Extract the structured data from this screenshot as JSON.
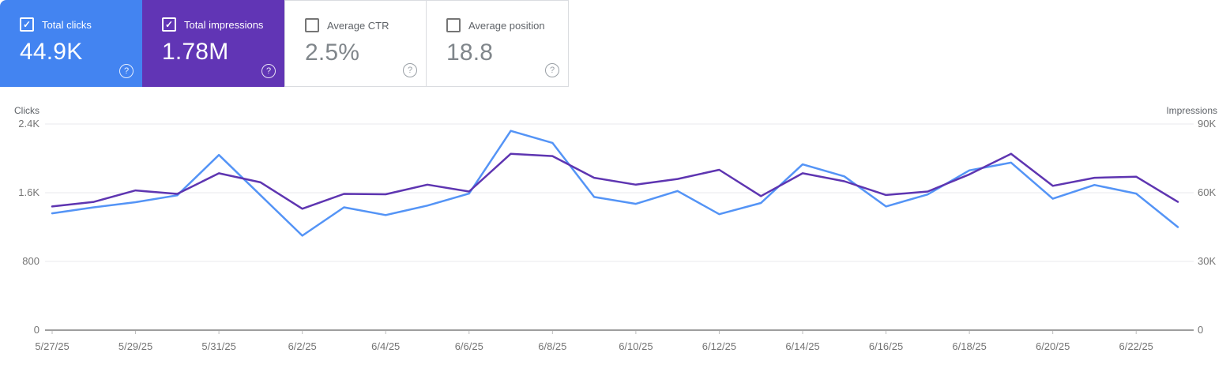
{
  "cards": [
    {
      "label": "Total clicks",
      "value": "44.9K",
      "checked": true,
      "bg": "#4384f1"
    },
    {
      "label": "Total impressions",
      "value": "1.78M",
      "checked": true,
      "bg": "#6135b5"
    },
    {
      "label": "Average CTR",
      "value": "2.5%",
      "checked": false,
      "bg": null
    },
    {
      "label": "Average position",
      "value": "18.8",
      "checked": false,
      "bg": null
    }
  ],
  "icons": {
    "check": "✓",
    "help": "?"
  },
  "chart_data": {
    "type": "line",
    "x": [
      "5/27/25",
      "5/28/25",
      "5/29/25",
      "5/30/25",
      "5/31/25",
      "6/1/25",
      "6/2/25",
      "6/3/25",
      "6/4/25",
      "6/5/25",
      "6/6/25",
      "6/7/25",
      "6/8/25",
      "6/9/25",
      "6/10/25",
      "6/11/25",
      "6/12/25",
      "6/13/25",
      "6/14/25",
      "6/15/25",
      "6/16/25",
      "6/17/25",
      "6/18/25",
      "6/19/25",
      "6/20/25",
      "6/21/25",
      "6/22/25",
      "6/23/25"
    ],
    "x_tick_labels": [
      "5/27/25",
      "5/29/25",
      "5/31/25",
      "6/2/25",
      "6/4/25",
      "6/6/25",
      "6/8/25",
      "6/10/25",
      "6/12/25",
      "6/14/25",
      "6/16/25",
      "6/18/25",
      "6/20/25",
      "6/22/25"
    ],
    "series": [
      {
        "name": "Total clicks",
        "axis": "left",
        "color": "#5494f6",
        "values": [
          1360,
          1430,
          1490,
          1570,
          2040,
          1570,
          1100,
          1430,
          1340,
          1450,
          1590,
          2320,
          2180,
          1550,
          1470,
          1620,
          1350,
          1480,
          1930,
          1790,
          1440,
          1580,
          1860,
          1950,
          1530,
          1690,
          1590,
          1200
        ]
      },
      {
        "name": "Total impressions",
        "axis": "right",
        "color": "#5e35b1",
        "values": [
          54000,
          56000,
          61000,
          59500,
          68500,
          64500,
          53000,
          59500,
          59300,
          63500,
          60500,
          77000,
          76000,
          66500,
          63500,
          66000,
          70000,
          58500,
          68500,
          65000,
          59000,
          60500,
          68000,
          77000,
          63000,
          66500,
          67000,
          56000
        ]
      }
    ],
    "left_axis": {
      "label": "Clicks",
      "ticks": [
        0,
        800,
        1600,
        2400
      ],
      "tick_labels": [
        "0",
        "800",
        "1.6K",
        "2.4K"
      ],
      "max": 2400
    },
    "right_axis": {
      "label": "Impressions",
      "ticks": [
        0,
        30000,
        60000,
        90000
      ],
      "tick_labels": [
        "0",
        "30K",
        "60K",
        "90K"
      ],
      "max": 90000
    },
    "grid_color": "#e9eaed",
    "axis_line_color": "#9e9e9e"
  }
}
